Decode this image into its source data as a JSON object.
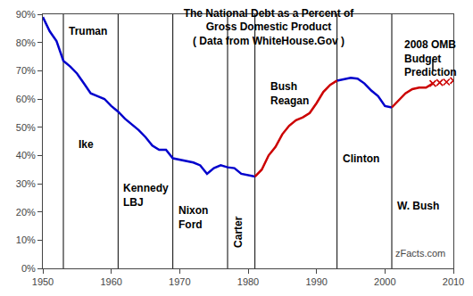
{
  "chart_data": {
    "type": "line",
    "title": "The National Debt as a Percent of\nGross Domestic Product\n( Data from WhiteHouse.Gov )",
    "x": [
      1950,
      1951,
      1952,
      1953,
      1954,
      1955,
      1956,
      1957,
      1958,
      1959,
      1960,
      1961,
      1962,
      1963,
      1964,
      1965,
      1966,
      1967,
      1968,
      1969,
      1970,
      1971,
      1972,
      1973,
      1974,
      1975,
      1976,
      1977,
      1978,
      1979,
      1980,
      1981,
      1982,
      1983,
      1984,
      1985,
      1986,
      1987,
      1988,
      1989,
      1990,
      1991,
      1992,
      1993,
      1994,
      1995,
      1996,
      1997,
      1998,
      1999,
      2000,
      2001,
      2002,
      2003,
      2004,
      2005,
      2006,
      2007,
      2008,
      2009,
      2010
    ],
    "series": [
      {
        "color": "#0000cc",
        "line_style": "solid",
        "marker": "none",
        "values": [
          89.0,
          84.0,
          80.5,
          73.5,
          71.5,
          69.0,
          65.5,
          62.0,
          61.0,
          60.0,
          57.5,
          55.5,
          53.0,
          51.0,
          49.0,
          46.5,
          43.5,
          42.0,
          42.0,
          39.0,
          38.5,
          38.0,
          37.5,
          36.5,
          33.5,
          35.5,
          36.5,
          35.8,
          35.5,
          33.5,
          33.0,
          32.5,
          null,
          null,
          null,
          null,
          null,
          null,
          null,
          null,
          null,
          null,
          null,
          66.5,
          67.0,
          67.5,
          67.2,
          65.5,
          63.0,
          61.0,
          57.5,
          57.0,
          null,
          null,
          null,
          null,
          null,
          null,
          null,
          null,
          null
        ]
      },
      {
        "color": "#cc0000",
        "line_style": "solid",
        "marker": "none",
        "values": [
          null,
          null,
          null,
          null,
          null,
          null,
          null,
          null,
          null,
          null,
          null,
          null,
          null,
          null,
          null,
          null,
          null,
          null,
          null,
          null,
          null,
          null,
          null,
          null,
          null,
          null,
          null,
          null,
          null,
          null,
          null,
          32.5,
          35.0,
          40.0,
          43.0,
          47.5,
          50.5,
          52.5,
          53.5,
          55.0,
          58.5,
          62.5,
          65.0,
          66.5,
          null,
          null,
          null,
          null,
          null,
          null,
          null,
          57.0,
          59.5,
          62.0,
          63.5,
          64.0,
          64.0,
          65.5,
          null,
          null,
          null
        ]
      },
      {
        "color": "#cc0000",
        "line_style": "none",
        "marker": "x",
        "values": [
          null,
          null,
          null,
          null,
          null,
          null,
          null,
          null,
          null,
          null,
          null,
          null,
          null,
          null,
          null,
          null,
          null,
          null,
          null,
          null,
          null,
          null,
          null,
          null,
          null,
          null,
          null,
          null,
          null,
          null,
          null,
          null,
          null,
          null,
          null,
          null,
          null,
          null,
          null,
          null,
          null,
          null,
          null,
          null,
          null,
          null,
          null,
          null,
          null,
          null,
          null,
          null,
          null,
          null,
          null,
          null,
          null,
          65.5,
          65.8,
          66.0,
          66.5
        ]
      }
    ],
    "xlim": [
      1950,
      2010
    ],
    "xticks": [
      1950,
      1960,
      1970,
      1980,
      1990,
      2000,
      2010
    ],
    "ylim": [
      0,
      90
    ],
    "yticks": [
      {
        "value": 0,
        "label": "0%"
      },
      {
        "value": 10,
        "label": "10%"
      },
      {
        "value": 20,
        "label": "20%"
      },
      {
        "value": 30,
        "label": "30%"
      },
      {
        "value": 40,
        "label": "40%"
      },
      {
        "value": 50,
        "label": "50%"
      },
      {
        "value": 60,
        "label": "60%"
      },
      {
        "value": 70,
        "label": "70%"
      },
      {
        "value": 80,
        "label": "80%"
      },
      {
        "value": 90,
        "label": "90%"
      }
    ],
    "vlines": [
      1953,
      1961,
      1969,
      1977,
      1981,
      1993,
      2001
    ],
    "segments": [
      {
        "x": [
          2007,
          2007
        ],
        "y": [
          70,
          74
        ]
      }
    ],
    "annotations": [
      {
        "text": "Truman",
        "x": 1953.5,
        "y": 84
      },
      {
        "text": "Ike",
        "x": 1955.0,
        "y": 44
      },
      {
        "text": "Kennedy\nLBJ",
        "x": 1961.5,
        "y": 26
      },
      {
        "text": "Nixon\nFord",
        "x": 1969.5,
        "y": 18
      },
      {
        "text": "Carter",
        "x": 1977.4,
        "y": 13
      },
      {
        "text": "Bush\nReagan",
        "x": 1983.0,
        "y": 62
      },
      {
        "text": "Clinton",
        "x": 1993.5,
        "y": 39
      },
      {
        "text": "W. Bush",
        "x": 2001.5,
        "y": 22
      },
      {
        "text": "2008 OMB\nBudget\nPrediction",
        "x": 2002.5,
        "y": 82,
        "anchor": "top"
      }
    ],
    "watermark": "zFacts.com",
    "grid": false,
    "legend": false
  }
}
